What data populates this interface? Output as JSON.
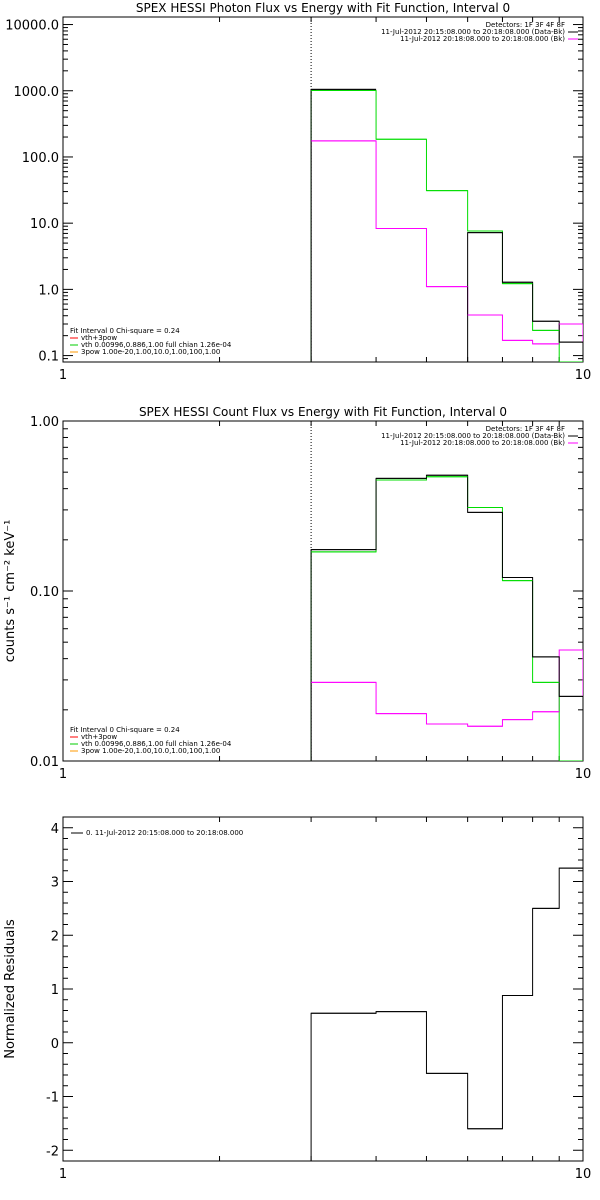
{
  "chart_data": [
    {
      "type": "line",
      "title": "SPEX HESSI Photon Flux vs Energy with Fit Function, Interval 0",
      "xlabel": "",
      "ylabel": "",
      "xscale": "log",
      "yscale": "log",
      "xlim": [
        1,
        10
      ],
      "ylim": [
        0.08,
        13000
      ],
      "xticks": [
        "1",
        "10"
      ],
      "yticks": [
        {
          "value": 0.1,
          "label": "0.1"
        },
        {
          "value": 1,
          "label": "1.0"
        },
        {
          "value": 10,
          "label": "10.0"
        },
        {
          "value": 100,
          "label": "100.0"
        },
        {
          "value": 1000,
          "label": "1000.0"
        },
        {
          "value": 10000,
          "label": "10000.0"
        }
      ],
      "vline": 3.0,
      "legend_top": [
        {
          "text": "Detectors: 1F 3F 4F 8F",
          "color": null
        },
        {
          "text": "11-Jul-2012 20:15:08.000 to 20:18:08.000 (Data-Bk)",
          "color": "#000000"
        },
        {
          "text": "11-Jul-2012 20:18:08.000 to 20:18:08.000 (Bk)",
          "color": "#ff00ff"
        }
      ],
      "legend_bottom": [
        {
          "text": "Fit Interval 0   Chi-square = 0.24",
          "color": null
        },
        {
          "text": "vth+3pow",
          "color": "#ff0000"
        },
        {
          "text": "vth 0.00996,0.886,1.00  full chian 1.26e-04",
          "color": "#00cc00"
        },
        {
          "text": "3pow 1.00e-20,1.00,10.0,1.00,100,1.00",
          "color": "#ff9900"
        }
      ],
      "series": [
        {
          "color": "#000000",
          "bins": [
            [
              3.0,
              4.0,
              1050
            ],
            [
              4.0,
              5.0,
              null
            ],
            [
              5.0,
              6.0,
              null
            ],
            [
              6.0,
              7.0,
              7.2
            ],
            [
              7.0,
              8.0,
              1.28
            ],
            [
              8.0,
              9.0,
              0.33
            ],
            [
              9.0,
              10.0,
              0.16
            ]
          ]
        },
        {
          "color": "#00dd00",
          "bins": [
            [
              3.0,
              4.0,
              1010
            ],
            [
              4.0,
              5.0,
              185
            ],
            [
              5.0,
              6.0,
              31
            ],
            [
              6.0,
              7.0,
              7.6
            ],
            [
              7.0,
              8.0,
              1.22
            ],
            [
              8.0,
              9.0,
              0.24
            ],
            [
              9.0,
              10.0,
              0.08
            ]
          ]
        },
        {
          "color": "#ff00ff",
          "bins": [
            [
              3.0,
              4.0,
              175
            ],
            [
              4.0,
              5.0,
              8.3
            ],
            [
              5.0,
              6.0,
              1.1
            ],
            [
              6.0,
              7.0,
              0.41
            ],
            [
              7.0,
              8.0,
              0.17
            ],
            [
              8.0,
              9.0,
              0.15
            ],
            [
              9.0,
              10.0,
              0.3
            ]
          ]
        }
      ]
    },
    {
      "type": "line",
      "title": "SPEX HESSI Count Flux vs Energy with Fit Function, Interval 0",
      "xlabel": "",
      "ylabel": "counts s⁻¹ cm⁻² keV⁻¹",
      "xscale": "log",
      "yscale": "log",
      "xlim": [
        1,
        10
      ],
      "ylim": [
        0.01,
        1.0
      ],
      "xticks": [
        "1",
        "10"
      ],
      "yticks": [
        {
          "value": 0.01,
          "label": "0.01"
        },
        {
          "value": 0.1,
          "label": "0.10"
        },
        {
          "value": 1,
          "label": "1.00"
        }
      ],
      "vline": 3.0,
      "legend_top": [
        {
          "text": "Detectors: 1F 3F 4F 8F",
          "color": null
        },
        {
          "text": "11-Jul-2012 20:15:08.000 to 20:18:08.000 (Data-Bk)",
          "color": "#000000"
        },
        {
          "text": "11-Jul-2012 20:18:08.000 to 20:18:08.000 (Bk)",
          "color": "#ff00ff"
        }
      ],
      "legend_bottom": [
        {
          "text": "Fit Interval 0   Chi-square = 0.24",
          "color": null
        },
        {
          "text": "vth+3pow",
          "color": "#ff0000"
        },
        {
          "text": "vth 0.00996,0.886,1.00  full chian 1.26e-04",
          "color": "#00cc00"
        },
        {
          "text": "3pow 1.00e-20,1.00,10.0,1.00,100,1.00",
          "color": "#ff9900"
        }
      ],
      "series": [
        {
          "color": "#000000",
          "bins": [
            [
              3.0,
              4.0,
              0.175
            ],
            [
              4.0,
              5.0,
              0.46
            ],
            [
              5.0,
              6.0,
              0.48
            ],
            [
              6.0,
              7.0,
              0.29
            ],
            [
              7.0,
              8.0,
              0.12
            ],
            [
              8.0,
              9.0,
              0.041
            ],
            [
              9.0,
              10.0,
              0.024
            ]
          ]
        },
        {
          "color": "#00dd00",
          "bins": [
            [
              3.0,
              4.0,
              0.17
            ],
            [
              4.0,
              5.0,
              0.45
            ],
            [
              5.0,
              6.0,
              0.47
            ],
            [
              6.0,
              7.0,
              0.31
            ],
            [
              7.0,
              8.0,
              0.115
            ],
            [
              8.0,
              9.0,
              0.029
            ],
            [
              9.0,
              10.0,
              0.009
            ]
          ]
        },
        {
          "color": "#ff00ff",
          "bins": [
            [
              3.0,
              4.0,
              0.029
            ],
            [
              4.0,
              5.0,
              0.019
            ],
            [
              5.0,
              6.0,
              0.0165
            ],
            [
              6.0,
              7.0,
              0.016
            ],
            [
              7.0,
              8.0,
              0.0175
            ],
            [
              8.0,
              9.0,
              0.0195
            ],
            [
              9.0,
              10.0,
              0.045
            ]
          ]
        }
      ]
    },
    {
      "type": "line",
      "title": "",
      "xlabel": "",
      "ylabel": "Normalized Residuals",
      "xscale": "log",
      "yscale": "linear",
      "xlim": [
        1,
        10
      ],
      "ylim": [
        -2.2,
        4.2
      ],
      "xticks": [
        "1",
        "10"
      ],
      "yticks": [
        {
          "value": -2,
          "label": "-2"
        },
        {
          "value": -1,
          "label": "-1"
        },
        {
          "value": 0,
          "label": "0"
        },
        {
          "value": 1,
          "label": "1"
        },
        {
          "value": 2,
          "label": "2"
        },
        {
          "value": 3,
          "label": "3"
        },
        {
          "value": 4,
          "label": "4"
        }
      ],
      "legend_top_left": [
        {
          "text": "0. 11-Jul-2012 20:15:08.000 to 20:18:08.000",
          "color": "#000000"
        }
      ],
      "series": [
        {
          "color": "#000000",
          "bins": [
            [
              3.0,
              4.0,
              0.55
            ],
            [
              4.0,
              5.0,
              0.58
            ],
            [
              5.0,
              6.0,
              -0.57
            ],
            [
              6.0,
              7.0,
              -1.6
            ],
            [
              7.0,
              8.0,
              0.88
            ],
            [
              8.0,
              9.0,
              2.5
            ],
            [
              9.0,
              10.0,
              3.25
            ]
          ]
        }
      ]
    }
  ]
}
